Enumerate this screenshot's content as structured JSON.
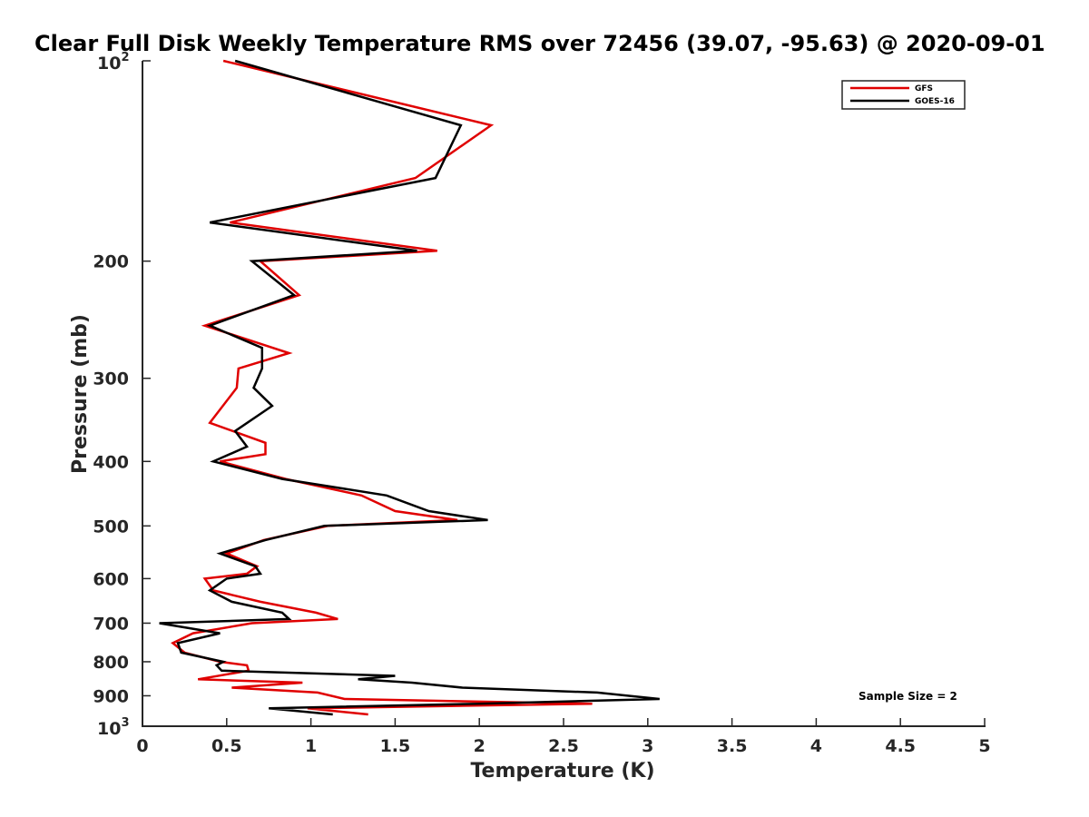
{
  "chart_data": {
    "type": "line",
    "title": "Clear Full Disk Weekly Temperature RMS over 72456 (39.07, -95.63) @ 2020-09-01",
    "xlabel": "Temperature (K)",
    "ylabel": "Pressure (mb)",
    "xlim": [
      0,
      5
    ],
    "ylim": [
      100,
      1000
    ],
    "yscale": "log",
    "y_reversed": true,
    "x_ticks": [
      "0",
      "0.5",
      "1",
      "1.5",
      "2",
      "2.5",
      "3",
      "3.5",
      "4",
      "4.5",
      "5"
    ],
    "x_tick_values": [
      0,
      0.5,
      1,
      1.5,
      2,
      2.5,
      3,
      3.5,
      4,
      4.5,
      5
    ],
    "y_ticks": [
      {
        "value": 100,
        "base": "10",
        "exp": "2"
      },
      {
        "value": 200,
        "label": "200"
      },
      {
        "value": 300,
        "label": "300"
      },
      {
        "value": 400,
        "label": "400"
      },
      {
        "value": 500,
        "label": "500"
      },
      {
        "value": 600,
        "label": "600"
      },
      {
        "value": 700,
        "label": "700"
      },
      {
        "value": 800,
        "label": "800"
      },
      {
        "value": 900,
        "label": "900"
      },
      {
        "value": 1000,
        "base": "10",
        "exp": "3"
      }
    ],
    "legend_position": "top-right",
    "annotation": "Sample Size = 2",
    "series": [
      {
        "name": "GFS",
        "color": "#e00000",
        "points": [
          [
            0.48,
            100
          ],
          [
            2.07,
            125
          ],
          [
            1.62,
            150
          ],
          [
            0.52,
            175
          ],
          [
            1.75,
            193
          ],
          [
            0.7,
            200
          ],
          [
            0.93,
            225
          ],
          [
            0.37,
            250
          ],
          [
            0.87,
            275
          ],
          [
            0.57,
            290
          ],
          [
            0.56,
            310
          ],
          [
            0.4,
            350
          ],
          [
            0.73,
            375
          ],
          [
            0.73,
            390
          ],
          [
            0.46,
            400
          ],
          [
            0.85,
            425
          ],
          [
            1.3,
            450
          ],
          [
            1.5,
            475
          ],
          [
            1.87,
            490
          ],
          [
            1.1,
            500
          ],
          [
            0.72,
            525
          ],
          [
            0.5,
            550
          ],
          [
            0.68,
            575
          ],
          [
            0.62,
            590
          ],
          [
            0.37,
            600
          ],
          [
            0.42,
            625
          ],
          [
            0.7,
            650
          ],
          [
            1.03,
            675
          ],
          [
            1.16,
            690
          ],
          [
            0.65,
            700
          ],
          [
            0.3,
            725
          ],
          [
            0.18,
            750
          ],
          [
            0.25,
            775
          ],
          [
            0.46,
            800
          ],
          [
            0.62,
            810
          ],
          [
            0.63,
            825
          ],
          [
            0.33,
            850
          ],
          [
            0.95,
            860
          ],
          [
            0.53,
            875
          ],
          [
            1.04,
            890
          ],
          [
            1.2,
            910
          ],
          [
            2.67,
            925
          ],
          [
            0.98,
            940
          ],
          [
            1.34,
            960
          ]
        ]
      },
      {
        "name": "GOES-16",
        "color": "#000000",
        "points": [
          [
            0.55,
            100
          ],
          [
            1.89,
            125
          ],
          [
            1.74,
            150
          ],
          [
            0.4,
            175
          ],
          [
            1.63,
            193
          ],
          [
            0.65,
            200
          ],
          [
            0.9,
            225
          ],
          [
            0.4,
            250
          ],
          [
            0.71,
            270
          ],
          [
            0.71,
            290
          ],
          [
            0.66,
            310
          ],
          [
            0.77,
            330
          ],
          [
            0.55,
            360
          ],
          [
            0.62,
            380
          ],
          [
            0.42,
            400
          ],
          [
            0.83,
            425
          ],
          [
            1.45,
            450
          ],
          [
            1.7,
            475
          ],
          [
            2.05,
            490
          ],
          [
            1.08,
            500
          ],
          [
            0.73,
            525
          ],
          [
            0.46,
            550
          ],
          [
            0.67,
            575
          ],
          [
            0.7,
            590
          ],
          [
            0.5,
            600
          ],
          [
            0.4,
            625
          ],
          [
            0.53,
            650
          ],
          [
            0.83,
            675
          ],
          [
            0.87,
            690
          ],
          [
            0.1,
            700
          ],
          [
            0.46,
            725
          ],
          [
            0.21,
            750
          ],
          [
            0.23,
            775
          ],
          [
            0.48,
            800
          ],
          [
            0.44,
            810
          ],
          [
            0.47,
            825
          ],
          [
            1.5,
            840
          ],
          [
            1.28,
            850
          ],
          [
            1.6,
            860
          ],
          [
            1.9,
            875
          ],
          [
            2.7,
            890
          ],
          [
            3.07,
            910
          ],
          [
            2.0,
            925
          ],
          [
            0.75,
            940
          ],
          [
            1.13,
            960
          ]
        ]
      }
    ]
  },
  "colors": {
    "axis": "#262626",
    "gfs": "#e00000",
    "goes16": "#000000"
  }
}
